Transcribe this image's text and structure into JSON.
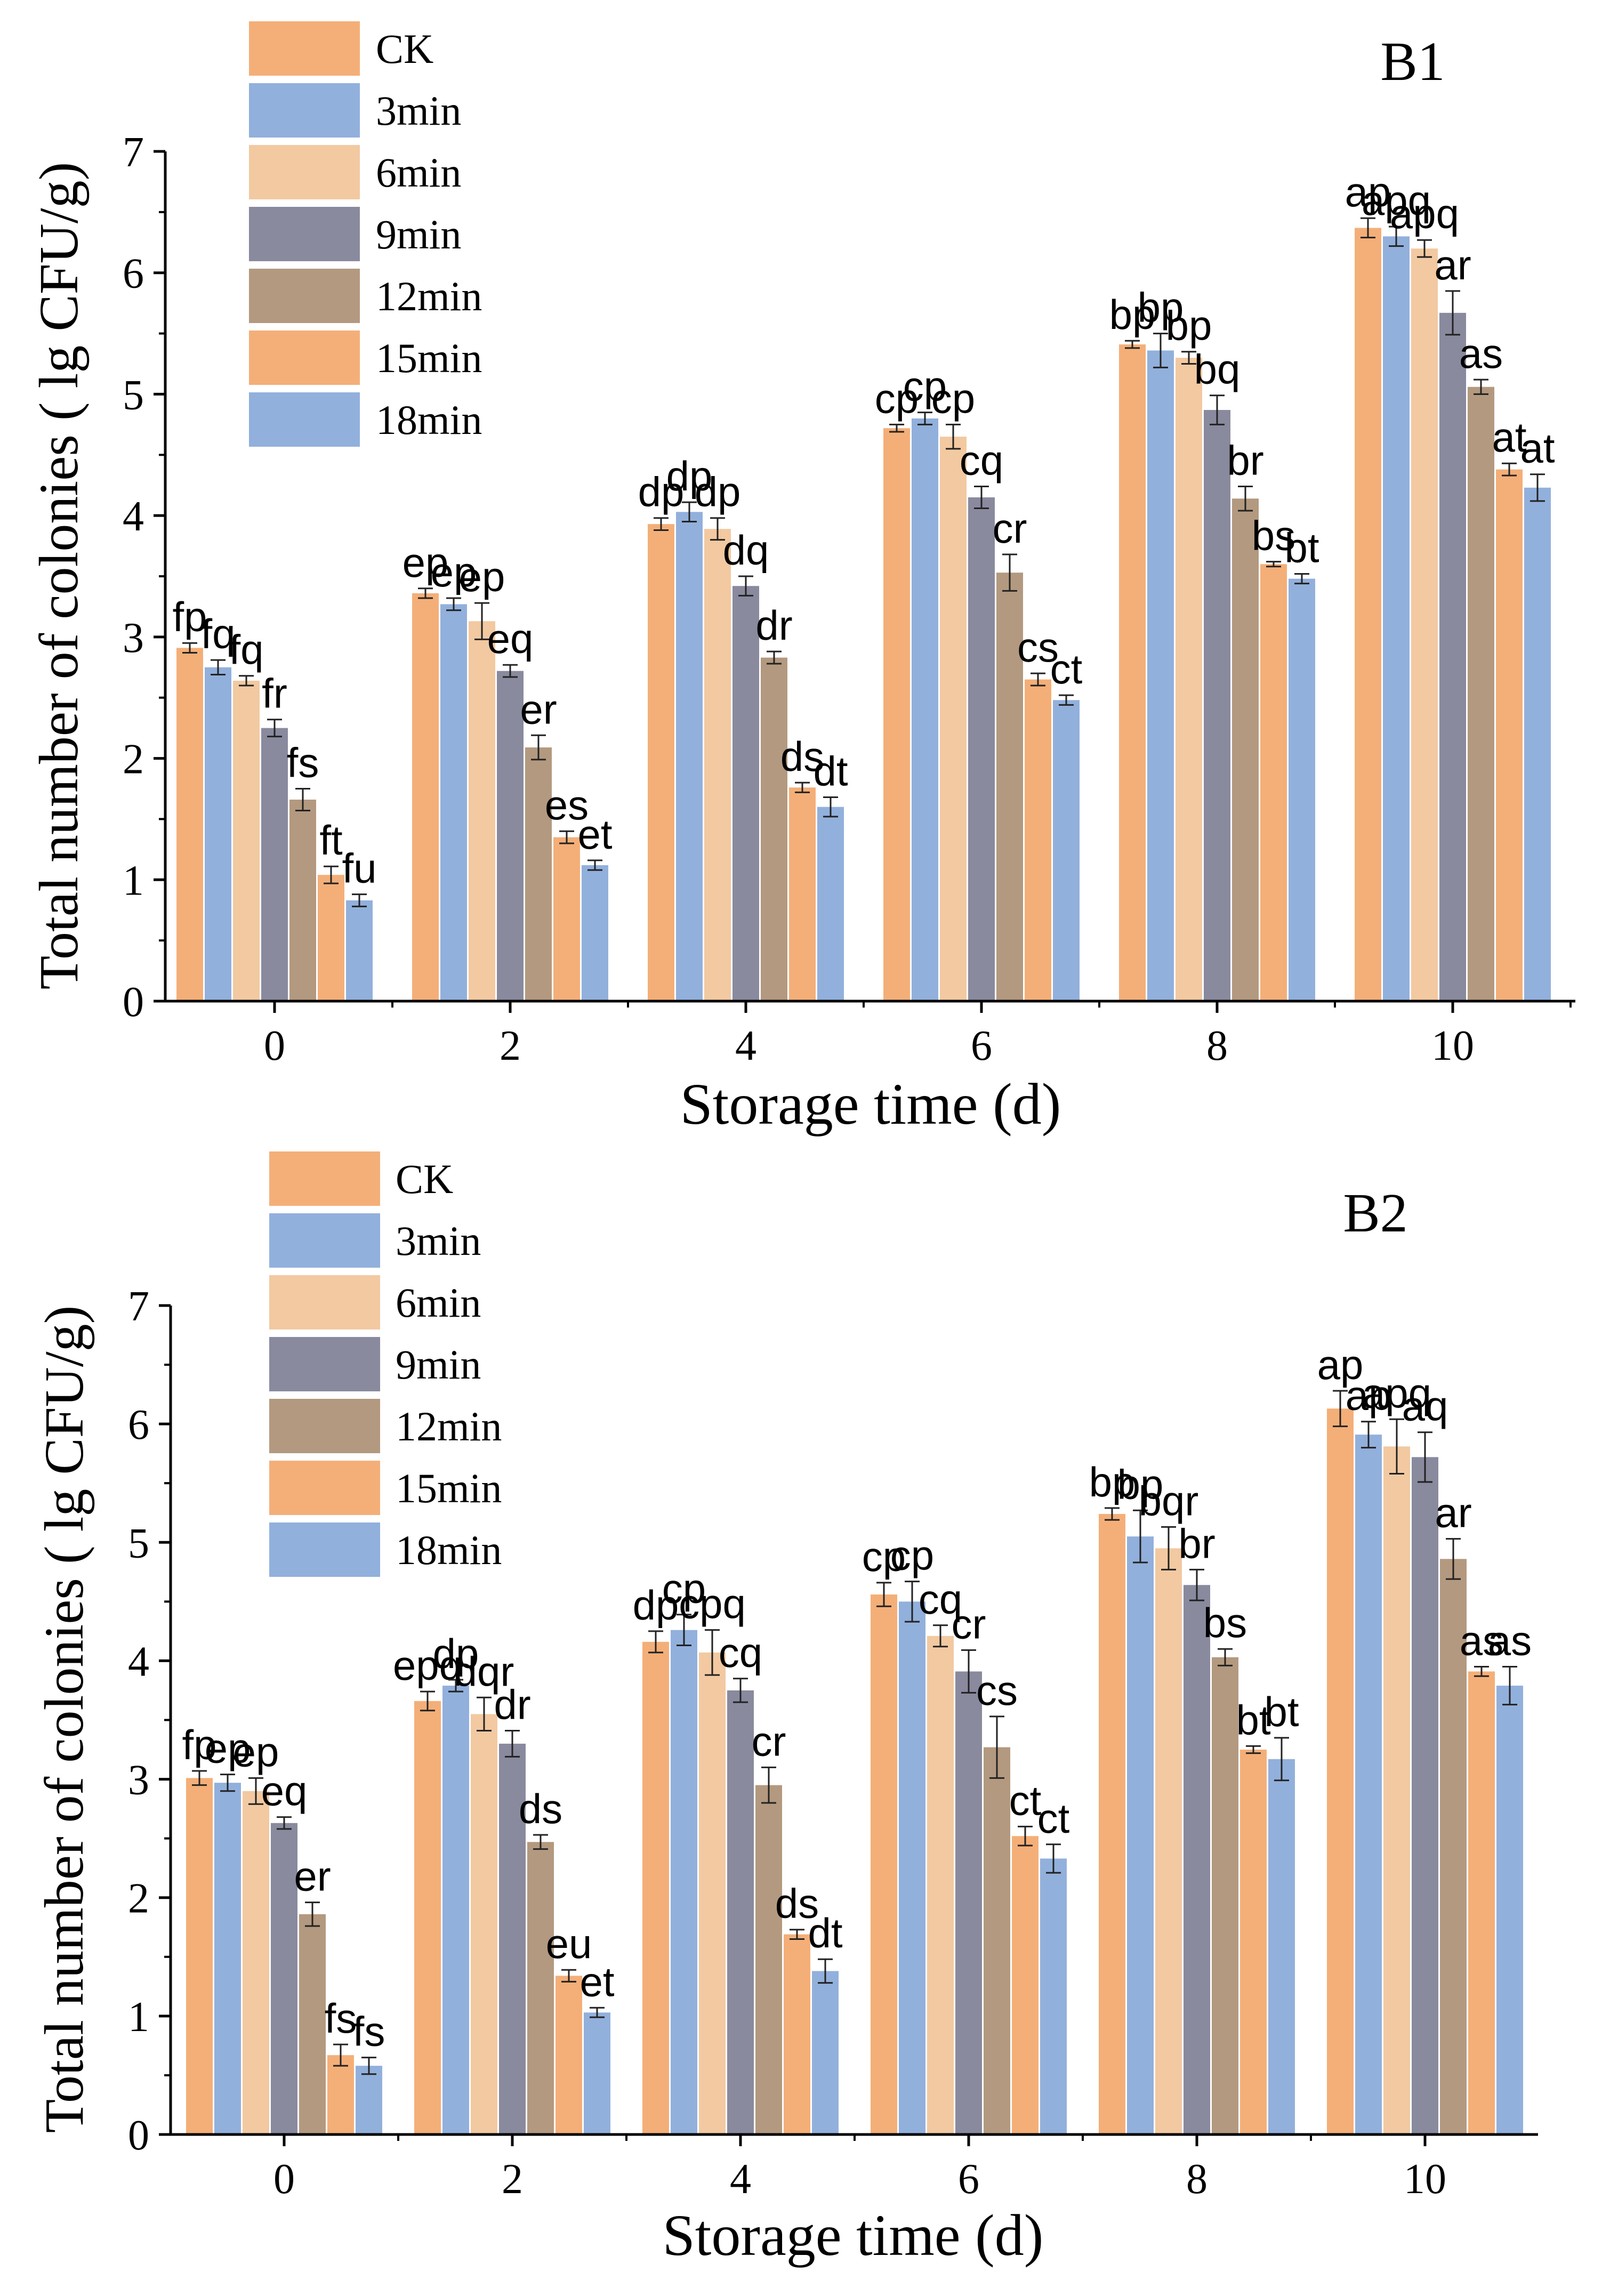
{
  "chart_data": [
    {
      "type": "bar",
      "title": "B1",
      "xlabel": "Storage time (d)",
      "ylabel": "Total number of colonies ( lg CFU/g)",
      "ylim": [
        0,
        7
      ],
      "yticks": [
        "0",
        "1",
        "2",
        "3",
        "4",
        "5",
        "6",
        "7"
      ],
      "categories": [
        "0",
        "2",
        "4",
        "6",
        "8",
        "10"
      ],
      "legend_position": "top-left",
      "series": [
        {
          "name": "CK",
          "color": "#F4AF78",
          "values": [
            2.91,
            3.36,
            3.93,
            4.72,
            5.41,
            6.37
          ],
          "errors": [
            0.04,
            0.04,
            0.05,
            0.03,
            0.03,
            0.08
          ],
          "labels": [
            "fp",
            "ep",
            "dp",
            "cp",
            "bp",
            "ap"
          ]
        },
        {
          "name": "3min",
          "color": "#92B0DC",
          "values": [
            2.75,
            3.27,
            4.03,
            4.8,
            5.36,
            6.3
          ],
          "errors": [
            0.06,
            0.05,
            0.08,
            0.05,
            0.14,
            0.08
          ],
          "labels": [
            "fq",
            "ep",
            "dp",
            "cp",
            "bp",
            "apq"
          ]
        },
        {
          "name": "6min",
          "color": "#F2C9A1",
          "values": [
            2.64,
            3.13,
            3.89,
            4.65,
            5.3,
            6.2
          ],
          "errors": [
            0.04,
            0.15,
            0.09,
            0.1,
            0.05,
            0.07
          ],
          "labels": [
            "fq",
            "ep",
            "dp",
            "cp",
            "bp",
            "apq"
          ]
        },
        {
          "name": "9min",
          "color": "#898A9E",
          "values": [
            2.25,
            2.72,
            3.42,
            4.15,
            4.87,
            5.67
          ],
          "errors": [
            0.07,
            0.05,
            0.08,
            0.09,
            0.12,
            0.18
          ],
          "labels": [
            "fr",
            "eq",
            "dq",
            "cq",
            "bq",
            "ar"
          ]
        },
        {
          "name": "12min",
          "color": "#B3997F",
          "values": [
            1.66,
            2.09,
            2.83,
            3.53,
            4.14,
            5.06
          ],
          "errors": [
            0.09,
            0.1,
            0.05,
            0.15,
            0.1,
            0.06
          ],
          "labels": [
            "fs",
            "er",
            "dr",
            "cr",
            "br",
            "as"
          ]
        },
        {
          "name": "15min",
          "color": "#F4AF78",
          "values": [
            1.04,
            1.35,
            1.76,
            2.65,
            3.6,
            4.38
          ],
          "errors": [
            0.07,
            0.05,
            0.04,
            0.05,
            0.02,
            0.05
          ],
          "labels": [
            "ft",
            "es",
            "ds",
            "cs",
            "bs",
            "at"
          ]
        },
        {
          "name": "18min",
          "color": "#92B0DC",
          "values": [
            0.83,
            1.12,
            1.6,
            2.48,
            3.48,
            4.23
          ],
          "errors": [
            0.05,
            0.04,
            0.08,
            0.04,
            0.04,
            0.11
          ],
          "labels": [
            "fu",
            "et",
            "dt",
            "ct",
            "bt",
            "at"
          ]
        }
      ]
    },
    {
      "type": "bar",
      "title": "B2",
      "xlabel": "Storage time (d)",
      "ylabel": "Total number of colonies ( lg CFU/g)",
      "ylim": [
        0,
        7
      ],
      "yticks": [
        "0",
        "1",
        "2",
        "3",
        "4",
        "5",
        "6",
        "7"
      ],
      "categories": [
        "0",
        "2",
        "4",
        "6",
        "8",
        "10"
      ],
      "legend_position": "top-left",
      "series": [
        {
          "name": "CK",
          "color": "#F4AF78",
          "values": [
            3.01,
            3.66,
            4.16,
            4.56,
            5.24,
            6.13
          ],
          "errors": [
            0.06,
            0.08,
            0.09,
            0.1,
            0.05,
            0.15
          ],
          "labels": [
            "fp",
            "epq",
            "dp",
            "cp",
            "bp",
            "ap"
          ]
        },
        {
          "name": "3min",
          "color": "#92B0DC",
          "values": [
            2.97,
            3.79,
            4.26,
            4.5,
            5.05,
            5.91
          ],
          "errors": [
            0.07,
            0.05,
            0.13,
            0.17,
            0.22,
            0.11
          ],
          "labels": [
            "ep",
            "dp",
            "cp",
            "cp",
            "bp",
            "ap"
          ]
        },
        {
          "name": "6min",
          "color": "#F2C9A1",
          "values": [
            2.9,
            3.55,
            4.07,
            4.21,
            4.95,
            5.81
          ],
          "errors": [
            0.11,
            0.14,
            0.19,
            0.09,
            0.18,
            0.23
          ],
          "labels": [
            "ep",
            "dqr",
            "cpq",
            "cq",
            "bqr",
            "apq"
          ]
        },
        {
          "name": "9min",
          "color": "#898A9E",
          "values": [
            2.63,
            3.3,
            3.75,
            3.91,
            4.64,
            5.72
          ],
          "errors": [
            0.05,
            0.11,
            0.1,
            0.18,
            0.13,
            0.21
          ],
          "labels": [
            "eq",
            "dr",
            "cq",
            "cr",
            "br",
            "aq"
          ]
        },
        {
          "name": "12min",
          "color": "#B3997F",
          "values": [
            1.86,
            2.47,
            2.95,
            3.27,
            4.03,
            4.86
          ],
          "errors": [
            0.1,
            0.06,
            0.15,
            0.26,
            0.07,
            0.17
          ],
          "labels": [
            "er",
            "ds",
            "cr",
            "cs",
            "bs",
            "ar"
          ]
        },
        {
          "name": "15min",
          "color": "#F4AF78",
          "values": [
            0.67,
            1.34,
            1.69,
            2.52,
            3.25,
            3.91
          ],
          "errors": [
            0.09,
            0.05,
            0.04,
            0.08,
            0.03,
            0.04
          ],
          "labels": [
            "fs",
            "eu",
            "ds",
            "ct",
            "bt",
            "as"
          ]
        },
        {
          "name": "18min",
          "color": "#92B0DC",
          "values": [
            0.58,
            1.03,
            1.38,
            2.33,
            3.17,
            3.79
          ],
          "errors": [
            0.07,
            0.04,
            0.1,
            0.12,
            0.18,
            0.16
          ],
          "labels": [
            "fs",
            "et",
            "dt",
            "ct",
            "bt",
            "as"
          ]
        }
      ]
    }
  ]
}
